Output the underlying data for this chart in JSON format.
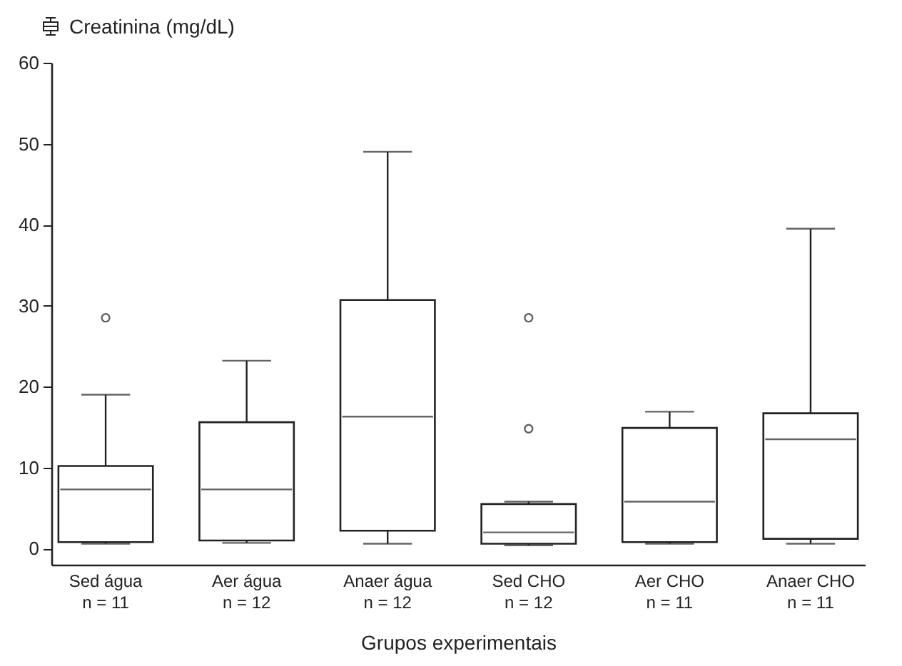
{
  "chart_data": {
    "type": "box",
    "ylabel": "Creatinina (mg/dL)",
    "xlabel": "Grupos experimentais",
    "categories": [
      "Sed água\nn = 11",
      "Aer água\nn = 12",
      "Anaer água\nn = 12",
      "Sed CHO\nn = 12",
      "Aer CHO\nn = 11",
      "Anaer CHO\nn = 11"
    ],
    "boxes": [
      {
        "low": 0.6,
        "q1": 0.8,
        "median": 7.3,
        "q3": 10.2,
        "high": 19,
        "outliers": [
          28.5
        ]
      },
      {
        "low": 0.7,
        "q1": 1,
        "median": 7.3,
        "q3": 15.6,
        "high": 23.2
      },
      {
        "low": 0.6,
        "q1": 2.2,
        "median": 16.3,
        "q3": 30.7,
        "high": 49
      },
      {
        "low": 0.4,
        "q1": 0.6,
        "median": 2,
        "q3": 5.5,
        "high": 5.8,
        "outliers": [
          14.8,
          28.5
        ]
      },
      {
        "low": 0.6,
        "q1": 0.8,
        "median": 5.8,
        "q3": 14.9,
        "high": 16.9
      },
      {
        "low": 0.6,
        "q1": 1.2,
        "median": 13.5,
        "q3": 16.7,
        "high": 39.5
      }
    ],
    "ylim": [
      -2,
      60
    ],
    "yticks": [
      0,
      10,
      20,
      30,
      40,
      50,
      60
    ]
  }
}
